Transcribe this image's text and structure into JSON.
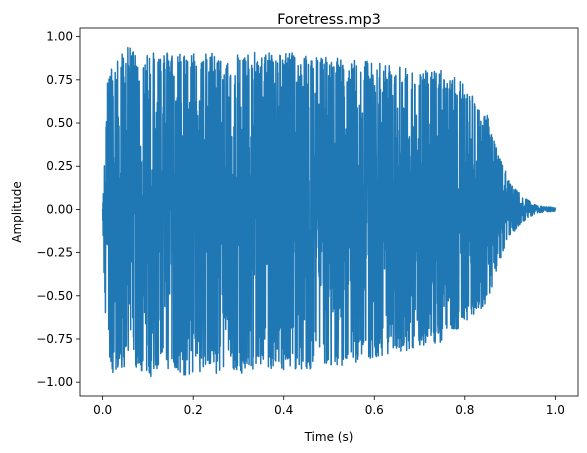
{
  "chart_data": {
    "type": "line",
    "title": "Foretress.mp3",
    "xlabel": "Time (s)",
    "ylabel": "Amplitude",
    "xlim": [
      -0.05,
      1.05
    ],
    "ylim": [
      -1.08,
      1.05
    ],
    "xticks": [
      0.0,
      0.2,
      0.4,
      0.6,
      0.8,
      1.0
    ],
    "xtick_labels": [
      "0.0",
      "0.2",
      "0.4",
      "0.6",
      "0.8",
      "1.0"
    ],
    "yticks": [
      -1.0,
      -0.75,
      -0.5,
      -0.25,
      0.0,
      0.25,
      0.5,
      0.75,
      1.0
    ],
    "ytick_labels": [
      "−1.00",
      "−0.75",
      "−0.50",
      "−0.25",
      "0.00",
      "0.25",
      "0.50",
      "0.75",
      "1.00"
    ],
    "grid": false,
    "series": [
      {
        "color": "#1f77b4",
        "envelope": {
          "t": [
            0.0,
            0.005,
            0.01,
            0.02,
            0.05,
            0.1,
            0.2,
            0.3,
            0.4,
            0.5,
            0.6,
            0.7,
            0.75,
            0.8,
            0.85,
            0.88,
            0.9,
            0.93,
            0.96,
            1.0
          ],
          "max": [
            0.02,
            0.35,
            0.8,
            0.82,
            0.94,
            0.92,
            0.91,
            0.91,
            0.91,
            0.89,
            0.86,
            0.8,
            0.82,
            0.72,
            0.55,
            0.3,
            0.15,
            0.07,
            0.02,
            0.01
          ],
          "min": [
            -0.02,
            -0.6,
            -0.88,
            -0.95,
            -0.92,
            -0.97,
            -0.96,
            -0.95,
            -0.93,
            -0.92,
            -0.86,
            -0.8,
            -0.77,
            -0.66,
            -0.55,
            -0.28,
            -0.15,
            -0.07,
            -0.02,
            -0.01
          ]
        }
      }
    ]
  }
}
